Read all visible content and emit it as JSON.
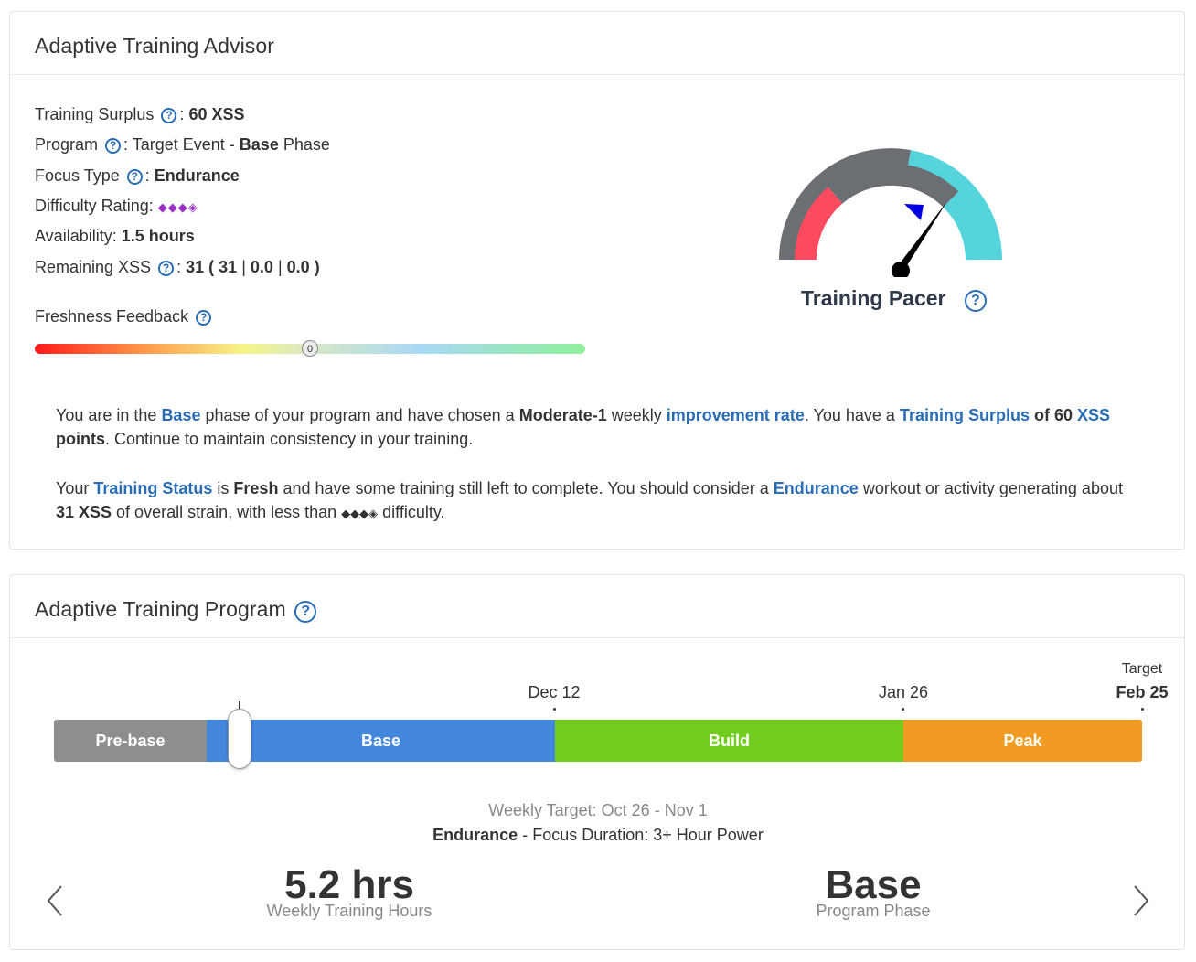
{
  "advisor": {
    "title": "Adaptive Training Advisor",
    "training_surplus_label": "Training Surplus",
    "training_surplus_value": "60 XSS",
    "program_label": "Program",
    "program_value_prefix": "Target Event - ",
    "program_phase": "Base",
    "program_value_suffix": " Phase",
    "focus_label": "Focus Type",
    "focus_value": "Endurance",
    "difficulty_label": "Difficulty Rating:",
    "difficulty_value": "◆◆◆◈",
    "availability_label": "Availability:",
    "availability_value": "1.5 hours",
    "remaining_label": "Remaining XSS",
    "remaining_total": "31",
    "remaining_low": "31",
    "remaining_high": "0.0",
    "remaining_peak": "0.0",
    "freshness_label": "Freshness Feedback",
    "freshness_value": "0",
    "gauge_label": "Training Pacer",
    "help_glyph": "?",
    "para1": {
      "t1": "You are in the ",
      "phase": "Base",
      "t2": " phase of your program and have chosen a ",
      "rate": "Moderate-1",
      "t3": " weekly ",
      "rate_link": "improvement rate",
      "t4": ". You have a ",
      "surplus_link": "Training Surplus",
      "t5": " of 60 ",
      "xss_link": "XSS",
      "points": "points",
      "t6": ". Continue to maintain consistency in your training."
    },
    "para2": {
      "t1": "Your ",
      "status_link": "Training Status",
      "t2": " is ",
      "status": "Fresh",
      "t3": " and have some training still left to complete. You should consider a ",
      "endurance_link": "Endurance",
      "t4": " workout or activity generating about ",
      "xss": "31 XSS",
      "t5": " of overall strain, with less than ",
      "diamonds": "◆◆◆◈",
      "t6": " difficulty."
    }
  },
  "program": {
    "title": "Adaptive Training Program",
    "phases": [
      {
        "label": "Pre-base",
        "color": "#8e8e8e"
      },
      {
        "label": "Base",
        "color": "#4387dd"
      },
      {
        "label": "Build",
        "color": "#71cc1d"
      },
      {
        "label": "Peak",
        "color": "#f29b22"
      }
    ],
    "date_build": "Dec 12",
    "date_peak": "Jan 26",
    "target_label": "Target",
    "target_date": "Feb 25",
    "weekly_target": "Weekly Target: Oct 26 - Nov 1",
    "focus_bold": "Endurance",
    "focus_rest": " - Focus Duration: 3+ Hour Power",
    "hours_value": "5.2 hrs",
    "hours_label": "Weekly Training Hours",
    "phase_value": "Base",
    "phase_label": "Program Phase"
  },
  "colors": {
    "accent_blue": "#2a6db5",
    "gauge_grey": "#6b6e72",
    "gauge_red": "#fc4b5e",
    "gauge_cyan": "#56d4db",
    "needle": "#000000",
    "marker": "#0000e0"
  }
}
